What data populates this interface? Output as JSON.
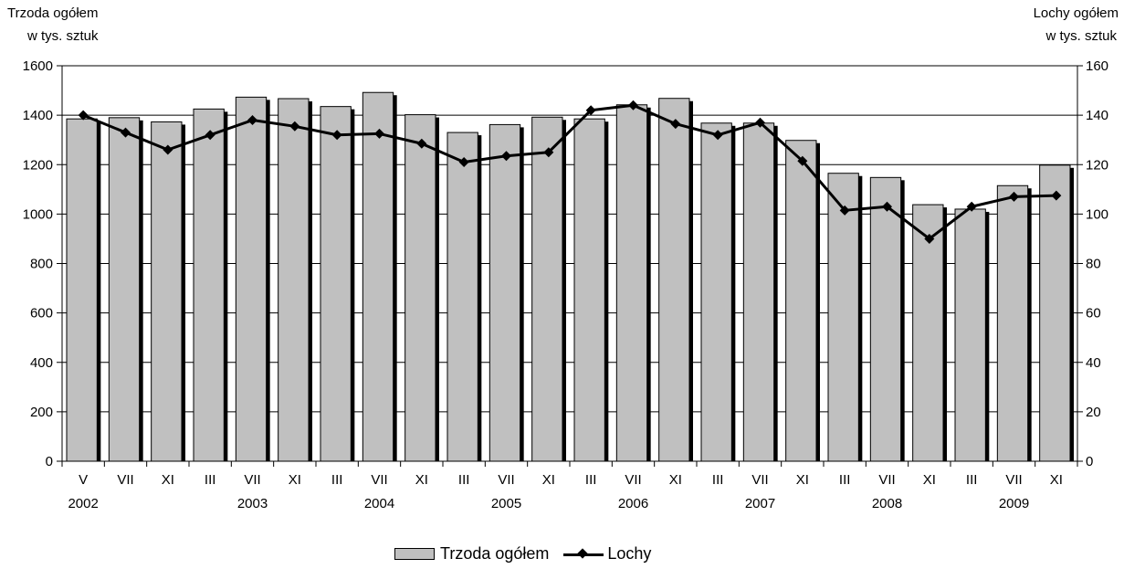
{
  "chart_data": {
    "type": "bar",
    "left_axis_title": [
      "Trzoda ogółem",
      "w tys. sztuk"
    ],
    "right_axis_title": [
      "Lochy ogółem",
      "w tys. sztuk"
    ],
    "left_ylim": [
      0,
      1600
    ],
    "left_yticks": [
      0,
      200,
      400,
      600,
      800,
      1000,
      1200,
      1400,
      1600
    ],
    "right_ylim": [
      0,
      160
    ],
    "right_yticks": [
      0,
      20,
      40,
      60,
      80,
      100,
      120,
      140,
      160
    ],
    "categories": [
      "V",
      "VII",
      "XI",
      "III",
      "VII",
      "XI",
      "III",
      "VII",
      "XI",
      "III",
      "VII",
      "XI",
      "III",
      "VII",
      "XI",
      "III",
      "VII",
      "XI",
      "III",
      "VII",
      "XI",
      "III",
      "VII",
      "XI"
    ],
    "years": [
      {
        "label": "2002",
        "index": 0
      },
      {
        "label": "2003",
        "index": 4
      },
      {
        "label": "2004",
        "index": 7
      },
      {
        "label": "2005",
        "index": 10
      },
      {
        "label": "2006",
        "index": 13
      },
      {
        "label": "2007",
        "index": 16
      },
      {
        "label": "2008",
        "index": 19
      },
      {
        "label": "2009",
        "index": 22
      }
    ],
    "grid": true,
    "legend_position": "bottom",
    "series": [
      {
        "name": "Trzoda ogółem",
        "type": "bar",
        "axis": "left",
        "color": "#c0c0c0",
        "values": [
          1385,
          1390,
          1373,
          1425,
          1473,
          1467,
          1435,
          1492,
          1402,
          1330,
          1362,
          1392,
          1385,
          1442,
          1468,
          1368,
          1368,
          1298,
          1165,
          1148,
          1038,
          1020,
          1115,
          1198
        ]
      },
      {
        "name": "Lochy",
        "type": "line",
        "axis": "right",
        "color": "#000000",
        "values": [
          140.0,
          133.0,
          126.0,
          132.0,
          138.0,
          135.5,
          132.0,
          132.5,
          128.5,
          121.0,
          123.5,
          125.0,
          142.0,
          144.0,
          136.5,
          132.0,
          137.0,
          121.5,
          101.5,
          103.0,
          90.0,
          103.0,
          107.0,
          107.5
        ]
      }
    ]
  }
}
